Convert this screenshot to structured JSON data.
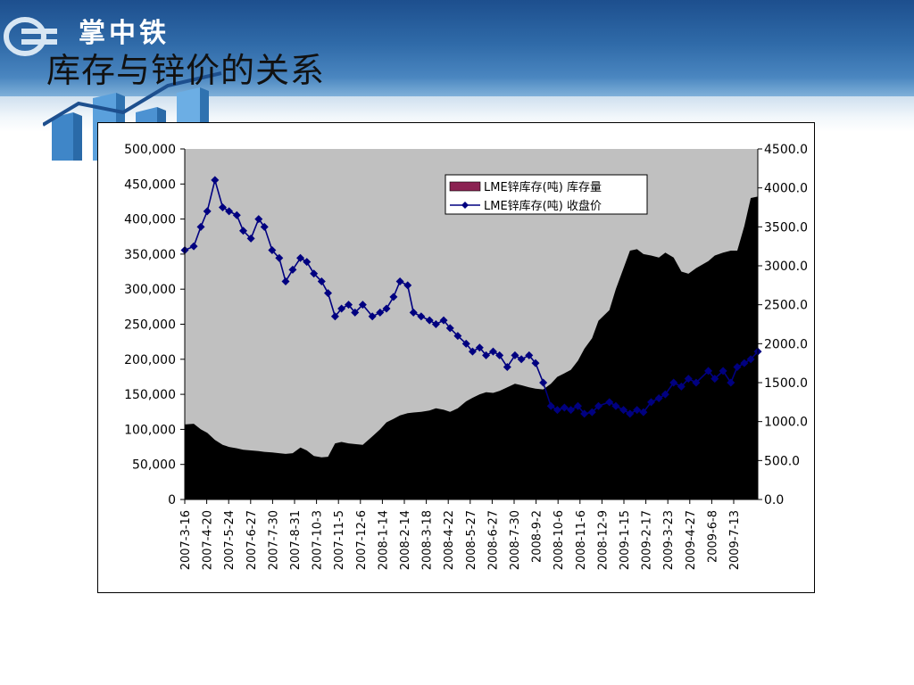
{
  "header": {
    "brand": "掌中铁",
    "title": "库存与锌价的关系"
  },
  "colors": {
    "plot_bg": "#c0c0c0",
    "area_fill": "#000000",
    "line": "#000080",
    "legend_area_swatch": "#8b2252"
  },
  "chart_data": {
    "type": "area",
    "legend": {
      "placement": "top-right",
      "entries": [
        "LME锌库存(吨) 库存量",
        "LME锌库存(吨) 收盘价"
      ]
    },
    "y_left": {
      "ylim": [
        0,
        500000
      ],
      "ticks": [
        0,
        50000,
        100000,
        150000,
        200000,
        250000,
        300000,
        350000,
        400000,
        450000,
        500000
      ],
      "tick_labels": [
        "0",
        "50,000",
        "100,000",
        "150,000",
        "200,000",
        "250,000",
        "300,000",
        "350,000",
        "400,000",
        "450,000",
        "500,000"
      ]
    },
    "y_right": {
      "ylim": [
        0,
        4500
      ],
      "ticks": [
        0,
        500,
        1000,
        1500,
        2000,
        2500,
        3000,
        3500,
        4000,
        4500
      ],
      "tick_labels": [
        "0.0",
        "500.0",
        "1000.0",
        "1500.0",
        "2000.0",
        "2500.0",
        "3000.0",
        "3500.0",
        "4000.0",
        "4500.0"
      ]
    },
    "x_tick_labels": [
      "2007-3-16",
      "2007-4-20",
      "2007-5-24",
      "2007-6-27",
      "2007-7-30",
      "2007-8-31",
      "2007-10-3",
      "2007-11-5",
      "2007-12-6",
      "2008-1-14",
      "2008-2-14",
      "2008-3-18",
      "2008-4-22",
      "2008-5-27",
      "2008-6-27",
      "2008-7-30",
      "2008-9-2",
      "2008-10-6",
      "2008-11-6",
      "2008-12-9",
      "2009-1-15",
      "2009-2-17",
      "2009-3-23",
      "2009-4-27",
      "2009-6-8",
      "2009-7-13"
    ],
    "series": [
      {
        "name": "LME锌库存(吨) 库存量",
        "kind": "area",
        "axis": "left",
        "x": [
          "2007-3-16",
          "2007-3-30",
          "2007-4-10",
          "2007-4-20",
          "2007-5-2",
          "2007-5-14",
          "2007-5-24",
          "2007-6-5",
          "2007-6-15",
          "2007-6-27",
          "2007-7-9",
          "2007-7-18",
          "2007-7-30",
          "2007-8-10",
          "2007-8-20",
          "2007-8-31",
          "2007-9-12",
          "2007-9-22",
          "2007-10-3",
          "2007-10-15",
          "2007-10-25",
          "2007-11-5",
          "2007-11-15",
          "2007-11-26",
          "2007-12-6",
          "2007-12-18",
          "2008-1-2",
          "2008-1-14",
          "2008-1-24",
          "2008-2-4",
          "2008-2-14",
          "2008-2-26",
          "2008-3-6",
          "2008-3-18",
          "2008-3-31",
          "2008-4-10",
          "2008-4-22",
          "2008-5-2",
          "2008-5-14",
          "2008-5-27",
          "2008-6-6",
          "2008-6-17",
          "2008-6-27",
          "2008-7-8",
          "2008-7-18",
          "2008-7-30",
          "2008-8-11",
          "2008-8-21",
          "2008-9-2",
          "2008-9-12",
          "2008-9-24",
          "2008-10-6",
          "2008-10-16",
          "2008-10-27",
          "2008-11-6",
          "2008-11-17",
          "2008-11-27",
          "2008-12-9",
          "2008-12-19",
          "2009-1-5",
          "2009-1-15",
          "2009-1-27",
          "2009-2-6",
          "2009-2-17",
          "2009-2-27",
          "2009-3-11",
          "2009-3-23",
          "2009-4-2",
          "2009-4-15",
          "2009-4-27",
          "2009-5-8",
          "2009-5-20",
          "2009-6-8",
          "2009-6-18",
          "2009-7-1",
          "2009-7-13",
          "2009-7-23",
          "2009-8-3",
          "2009-8-13",
          "2009-8-24"
        ],
        "values": [
          107000,
          108000,
          100000,
          95000,
          85000,
          78000,
          75000,
          73000,
          71000,
          70000,
          69000,
          68000,
          67000,
          66000,
          65000,
          66000,
          74000,
          70000,
          62000,
          60000,
          61000,
          80000,
          82000,
          80000,
          79000,
          78000,
          90000,
          100000,
          110000,
          115000,
          120000,
          123000,
          124000,
          125000,
          127000,
          130000,
          128000,
          125000,
          130000,
          140000,
          145000,
          150000,
          153000,
          152000,
          155000,
          160000,
          165000,
          163000,
          160000,
          158000,
          157000,
          165000,
          175000,
          180000,
          185000,
          198000,
          215000,
          230000,
          255000,
          270000,
          300000,
          330000,
          355000,
          357000,
          350000,
          348000,
          345000,
          352000,
          345000,
          325000,
          322000,
          330000,
          340000,
          348000,
          352000,
          355000,
          355000,
          390000,
          430000,
          432000
        ]
      },
      {
        "name": "LME锌库存(吨) 收盘价",
        "kind": "line",
        "axis": "right",
        "x": [
          "2007-3-16",
          "2007-3-30",
          "2007-4-10",
          "2007-4-20",
          "2007-5-2",
          "2007-5-14",
          "2007-5-24",
          "2007-6-5",
          "2007-6-15",
          "2007-6-27",
          "2007-7-9",
          "2007-7-18",
          "2007-7-30",
          "2007-8-10",
          "2007-8-20",
          "2007-8-31",
          "2007-9-12",
          "2007-9-22",
          "2007-10-3",
          "2007-10-15",
          "2007-10-25",
          "2007-11-5",
          "2007-11-15",
          "2007-11-26",
          "2007-12-6",
          "2007-12-18",
          "2008-1-2",
          "2008-1-14",
          "2008-1-24",
          "2008-2-4",
          "2008-2-14",
          "2008-2-26",
          "2008-3-6",
          "2008-3-18",
          "2008-3-31",
          "2008-4-10",
          "2008-4-22",
          "2008-5-2",
          "2008-5-14",
          "2008-5-27",
          "2008-6-6",
          "2008-6-17",
          "2008-6-27",
          "2008-7-8",
          "2008-7-18",
          "2008-7-30",
          "2008-8-11",
          "2008-8-21",
          "2008-9-2",
          "2008-9-12",
          "2008-9-24",
          "2008-10-6",
          "2008-10-16",
          "2008-10-27",
          "2008-11-6",
          "2008-11-17",
          "2008-11-27",
          "2008-12-9",
          "2008-12-19",
          "2009-1-5",
          "2009-1-15",
          "2009-1-27",
          "2009-2-6",
          "2009-2-17",
          "2009-2-27",
          "2009-3-11",
          "2009-3-23",
          "2009-4-2",
          "2009-4-15",
          "2009-4-27",
          "2009-5-8",
          "2009-5-20",
          "2009-6-8",
          "2009-6-18",
          "2009-7-1",
          "2009-7-13",
          "2009-7-23",
          "2009-8-3",
          "2009-8-13",
          "2009-8-24"
        ],
        "values": [
          3200,
          3250,
          3500,
          3700,
          4100,
          3750,
          3700,
          3650,
          3450,
          3350,
          3600,
          3500,
          3200,
          3100,
          2800,
          2950,
          3100,
          3050,
          2900,
          2800,
          2650,
          2350,
          2450,
          2500,
          2400,
          2500,
          2350,
          2400,
          2450,
          2600,
          2800,
          2750,
          2400,
          2350,
          2300,
          2250,
          2300,
          2200,
          2100,
          2000,
          1900,
          1950,
          1850,
          1900,
          1850,
          1700,
          1850,
          1800,
          1850,
          1750,
          1500,
          1200,
          1150,
          1180,
          1150,
          1200,
          1100,
          1120,
          1200,
          1250,
          1200,
          1150,
          1100,
          1150,
          1120,
          1250,
          1300,
          1350,
          1500,
          1450,
          1550,
          1500,
          1650,
          1550,
          1650,
          1500,
          1700,
          1750,
          1800,
          1900
        ]
      }
    ]
  }
}
